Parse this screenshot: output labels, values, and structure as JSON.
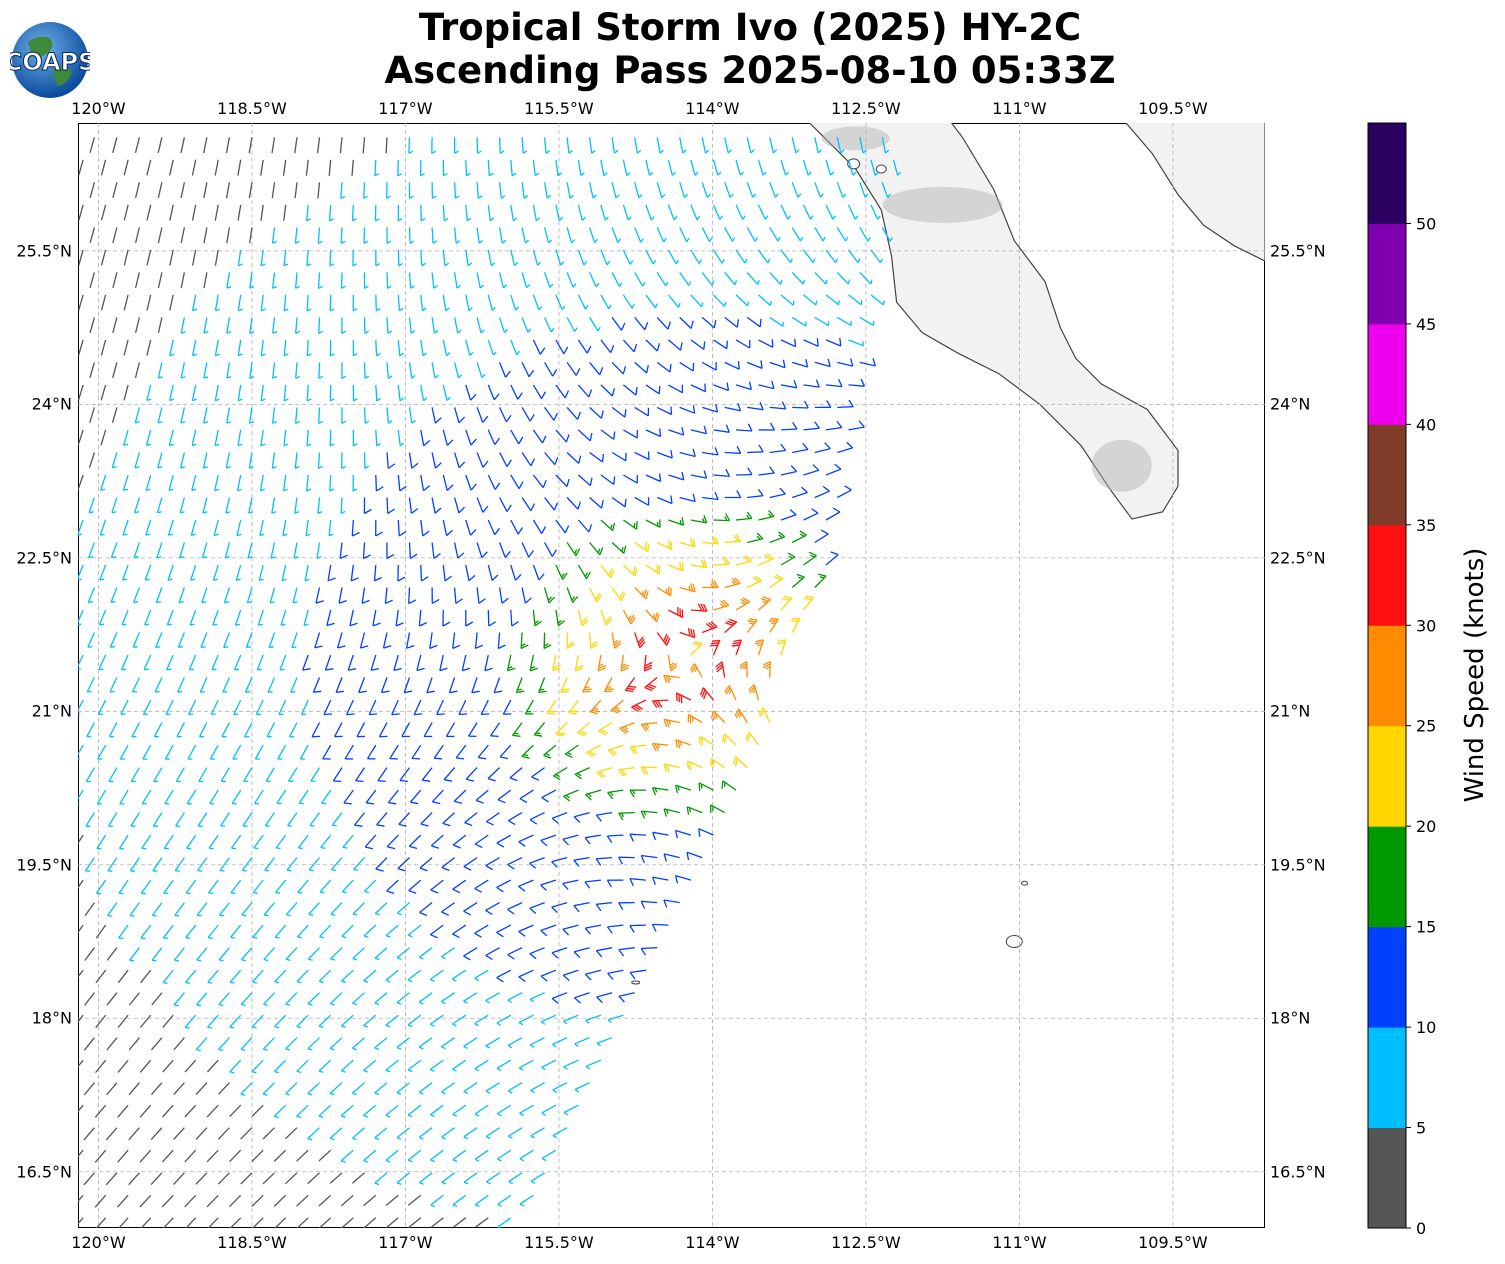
{
  "title": {
    "line1": "Tropical Storm Ivo (2025) HY-2C",
    "line2": "Ascending Pass 2025-08-10 05:33Z"
  },
  "logo": {
    "text": "COAPS",
    "icon": "globe-icon"
  },
  "map": {
    "lon_range": [
      -120.2,
      -108.6
    ],
    "lat_range": [
      15.95,
      26.75
    ],
    "lon_ticks": [
      "120°W",
      "118.5°W",
      "117°W",
      "115.5°W",
      "114°W",
      "112.5°W",
      "111°W",
      "109.5°W"
    ],
    "lat_ticks": [
      "25.5°N",
      "24°N",
      "22.5°N",
      "21°N",
      "19.5°N",
      "18°N",
      "16.5°N"
    ],
    "grid": true,
    "storm_center": {
      "lon": -114.3,
      "lat": 21.5
    },
    "swath_east_edge": [
      {
        "lon": -115.8,
        "lat": 16.0
      },
      {
        "lon": -112.9,
        "lat": 22.0
      },
      {
        "lon": -112.1,
        "lat": 26.8
      }
    ],
    "colors": {
      "land": "#f2f2f2",
      "land_high": "#b0b0b0",
      "coast": "#444444",
      "grid": "#b0b0b0"
    }
  },
  "colorbar": {
    "label": "Wind Speed (knots)",
    "bounds": [
      0,
      5,
      10,
      15,
      20,
      25,
      30,
      35,
      40,
      45,
      50,
      55
    ],
    "tick_labels": [
      "0",
      "5",
      "10",
      "15",
      "20",
      "25",
      "30",
      "35",
      "40",
      "45",
      "50"
    ],
    "colors": [
      "#555555",
      "#00bfff",
      "#0040ff",
      "#009900",
      "#ffd700",
      "#ff8c00",
      "#ff1010",
      "#803c28",
      "#ee00ee",
      "#8000b0",
      "#2a0060"
    ]
  }
}
